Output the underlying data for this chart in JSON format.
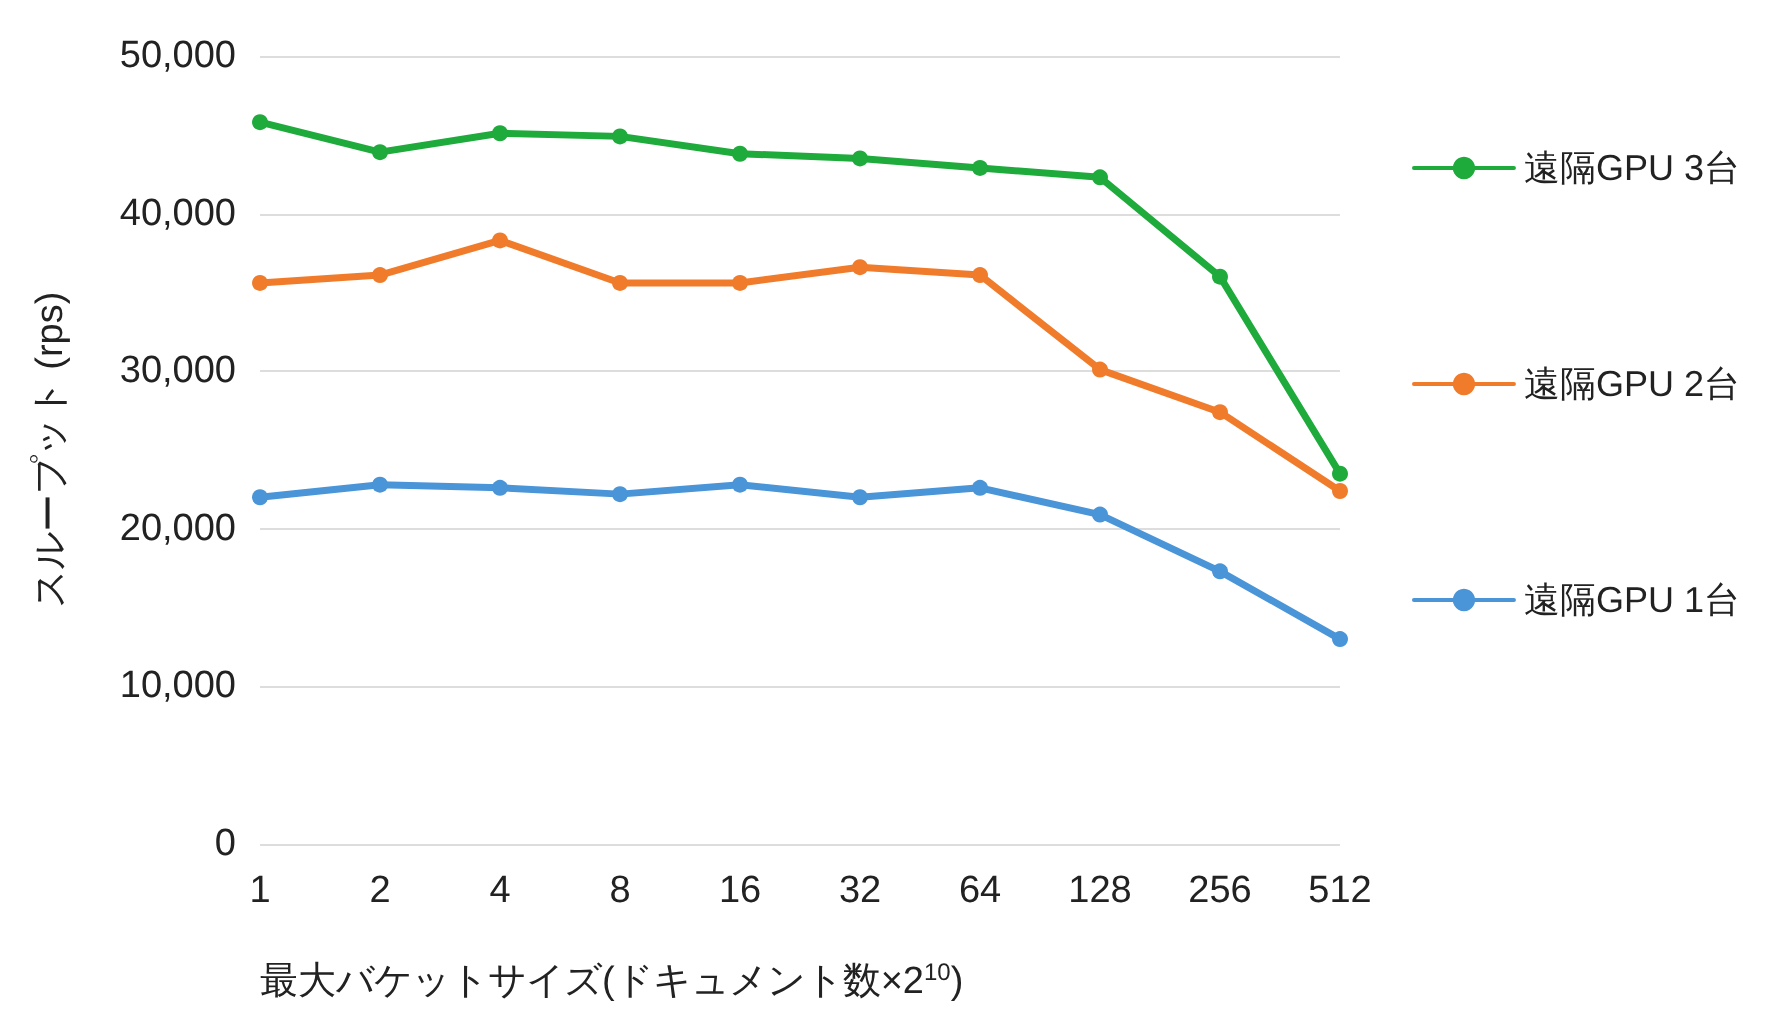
{
  "chart_data": {
    "type": "line",
    "xlabel": "最大バケットサイズ(ドキュメント数×2$^{10}$)",
    "ylabel": "スループット (rps)",
    "categories": [
      "1",
      "2",
      "4",
      "8",
      "16",
      "32",
      "64",
      "128",
      "256",
      "512"
    ],
    "series": [
      {
        "name": "遠隔GPU 3台",
        "color": "#1faa3c",
        "values": [
          45800,
          43900,
          45100,
          44900,
          43800,
          43500,
          42900,
          42300,
          36000,
          23500
        ]
      },
      {
        "name": "遠隔GPU 2台",
        "color": "#f07c2b",
        "values": [
          35600,
          36100,
          38300,
          35600,
          35600,
          36600,
          36100,
          30100,
          27400,
          22400
        ]
      },
      {
        "name": "遠隔GPU 1台",
        "color": "#4a94d8",
        "values": [
          22000,
          22800,
          22600,
          22200,
          22800,
          22000,
          22600,
          20900,
          17300,
          13000
        ]
      }
    ],
    "ylim": [
      0,
      50000
    ],
    "yticks": [
      0,
      {
        "value": 10000,
        "label": "10,000"
      },
      {
        "value": 20000,
        "label": "20,000"
      },
      {
        "value": 30000,
        "label": "30,000"
      },
      {
        "value": 40000,
        "label": "40,000"
      },
      {
        "value": 50000,
        "label": "50,000"
      }
    ],
    "grid": "y",
    "legend": "right",
    "marker": "circle",
    "line_style": "solid"
  }
}
